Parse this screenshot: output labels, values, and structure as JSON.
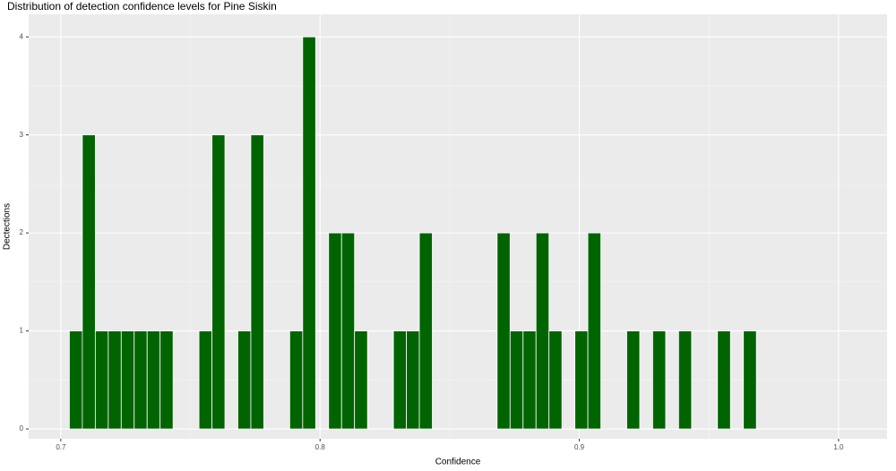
{
  "chart_data": {
    "type": "histogram",
    "title": "Distribution of detection confidence levels for Pine Siskin",
    "x_label": "Confidence",
    "y_label": "Dectections",
    "bins": [
      0.7033,
      0.7083,
      0.7133,
      0.7183,
      0.7233,
      0.7283,
      0.7333,
      0.7383,
      0.7433,
      0.7483,
      0.7533,
      0.7583,
      0.7633,
      0.7683,
      0.7733,
      0.7783,
      0.7833,
      0.7883,
      0.7933,
      0.7983,
      0.8033,
      0.8083,
      0.8133,
      0.8183,
      0.8233,
      0.8283,
      0.8333,
      0.8383,
      0.8433,
      0.8483,
      0.8533,
      0.8583,
      0.8633,
      0.8683,
      0.8733,
      0.8783,
      0.8833,
      0.8883,
      0.8933,
      0.8983,
      0.9033,
      0.9083,
      0.9133,
      0.9183,
      0.9233,
      0.9283,
      0.9333,
      0.9383,
      0.9433,
      0.9483,
      0.9533,
      0.9583,
      0.9633,
      0.9683
    ],
    "values": [
      1,
      3,
      1,
      1,
      1,
      1,
      1,
      1,
      0,
      0,
      1,
      3,
      0,
      1,
      3,
      0,
      0,
      1,
      4,
      0,
      2,
      2,
      1,
      0,
      0,
      1,
      1,
      2,
      0,
      0,
      0,
      0,
      0,
      2,
      1,
      1,
      2,
      1,
      0,
      1,
      2,
      0,
      0,
      1,
      0,
      1,
      0,
      1,
      0,
      0,
      1,
      0,
      1
    ],
    "color": "#006400",
    "xlim": [
      0.6876,
      1.0187
    ],
    "ylim": [
      -0.1,
      4.23
    ],
    "xticks": [
      0.7,
      0.8,
      0.9,
      {
        "value": 1.0,
        "label": "1.0"
      }
    ],
    "yticks": [
      0,
      1,
      2,
      3,
      4
    ],
    "grid": true
  }
}
